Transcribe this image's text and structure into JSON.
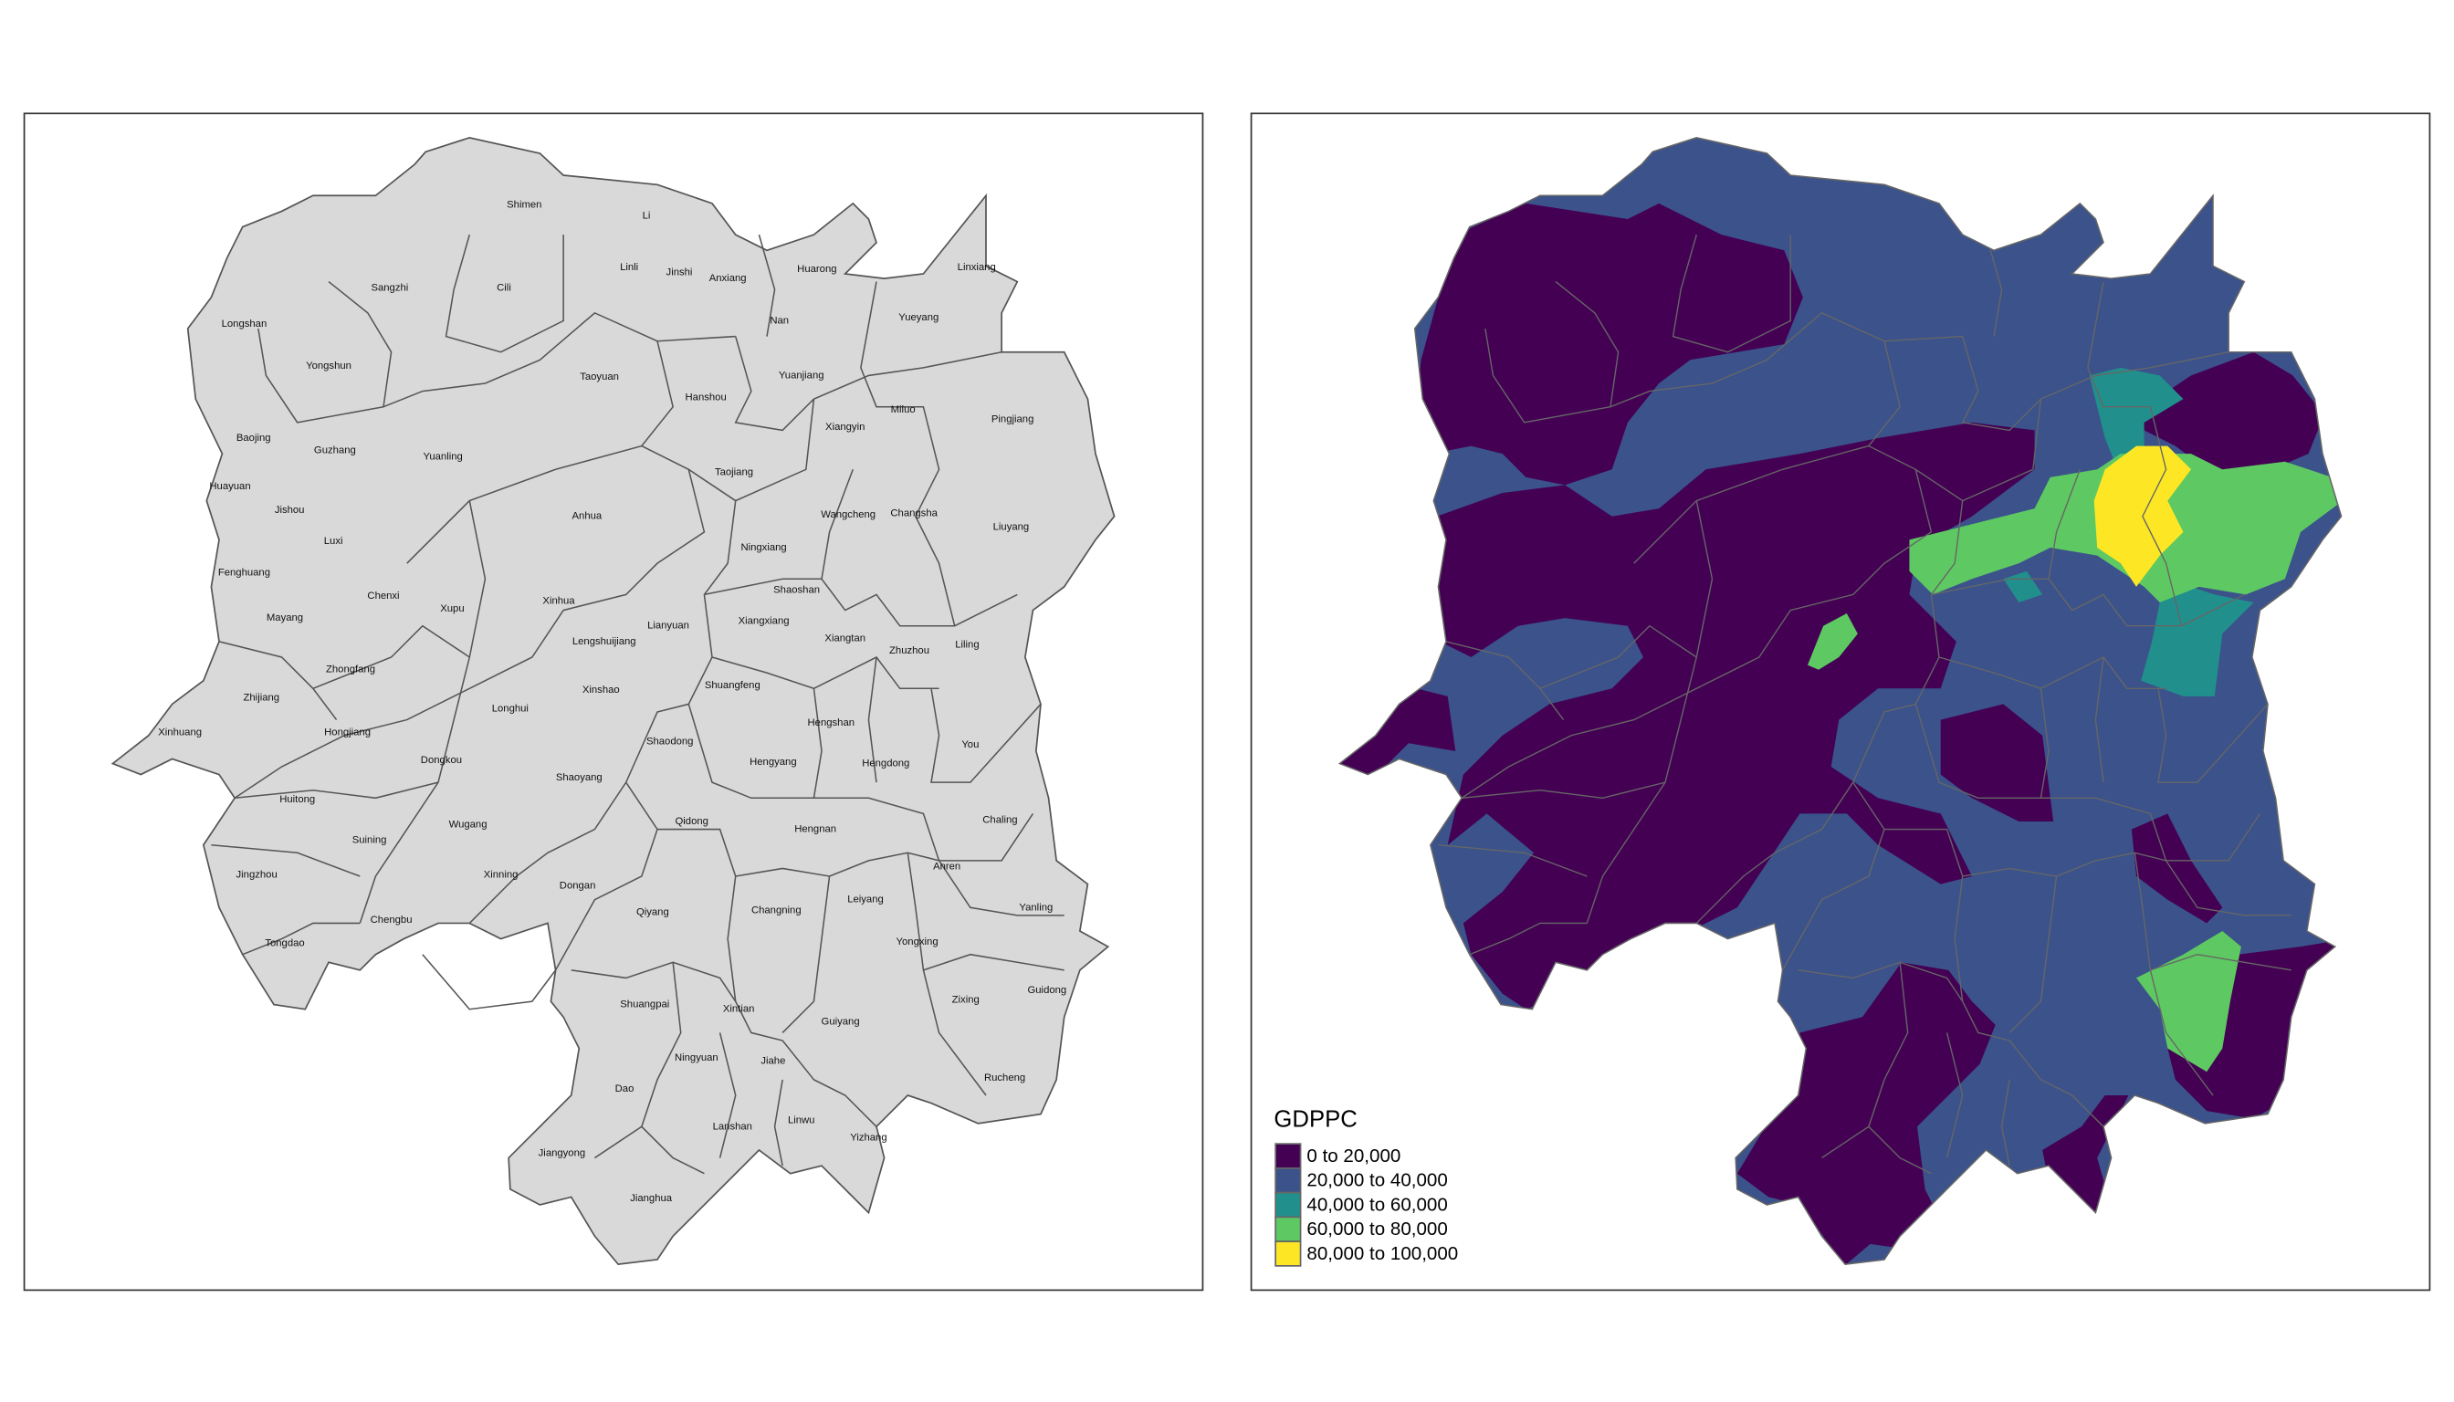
{
  "left_map": {
    "fill_color": "#d9d9d9",
    "border_color": "#555555",
    "county_labels": [
      "Shimen",
      "Li",
      "Linli",
      "Jinshi",
      "Anxiang",
      "Huarong",
      "Linxiang",
      "Sangzhi",
      "Cili",
      "Yueyang",
      "Nan",
      "Longshan",
      "Yongshun",
      "Yuanjiang",
      "Taoyuan",
      "Hanshou",
      "Miluo",
      "Pingjiang",
      "Xiangyin",
      "Baojing",
      "Guzhang",
      "Yuanling",
      "Taojiang",
      "Huayuan",
      "Jishou",
      "Wangcheng",
      "Changsha",
      "Liuyang",
      "Anhua",
      "Luxi",
      "Ningxiang",
      "Fenghuang",
      "Chenxi",
      "Xinhua",
      "Shaoshan",
      "Xupu",
      "Mayang",
      "Xiangxiang",
      "Lianyuan",
      "Xiangtan",
      "Lengshuijiang",
      "Zhuzhou",
      "Liling",
      "Zhongfang",
      "Shuangfeng",
      "Zhijiang",
      "Xinshao",
      "Longhui",
      "Hengshan",
      "Xinhuang",
      "Hongjiang",
      "Shaodong",
      "You",
      "Hengyang",
      "Hengdong",
      "Dongkou",
      "Shaoyang",
      "Huitong",
      "Qidong",
      "Hengnan",
      "Chaling",
      "Wugang",
      "Suining",
      "Anren",
      "Jingzhou",
      "Xinning",
      "Dongan",
      "Leiyang",
      "Yanling",
      "Qiyang",
      "Changning",
      "Chengbu",
      "Tongdao",
      "Yongxing",
      "Guidong",
      "Zixing",
      "Shuangpai",
      "Xintian",
      "Guiyang",
      "Ningyuan",
      "Jiahe",
      "Rucheng",
      "Dao",
      "Linwu",
      "Lanshan",
      "Yizhang",
      "Jiangyong",
      "Jianghua"
    ]
  },
  "right_map": {
    "legend": {
      "title": "GDPPC",
      "entries": [
        {
          "label": "0 to 20,000",
          "color": "#440154"
        },
        {
          "label": "20,000 to 40,000",
          "color": "#3b528b"
        },
        {
          "label": "40,000 to 60,000",
          "color": "#21908c"
        },
        {
          "label": "60,000 to 80,000",
          "color": "#5ec962"
        },
        {
          "label": "80,000 to 100,000",
          "color": "#fde725"
        }
      ]
    },
    "border_color": "#666666"
  }
}
